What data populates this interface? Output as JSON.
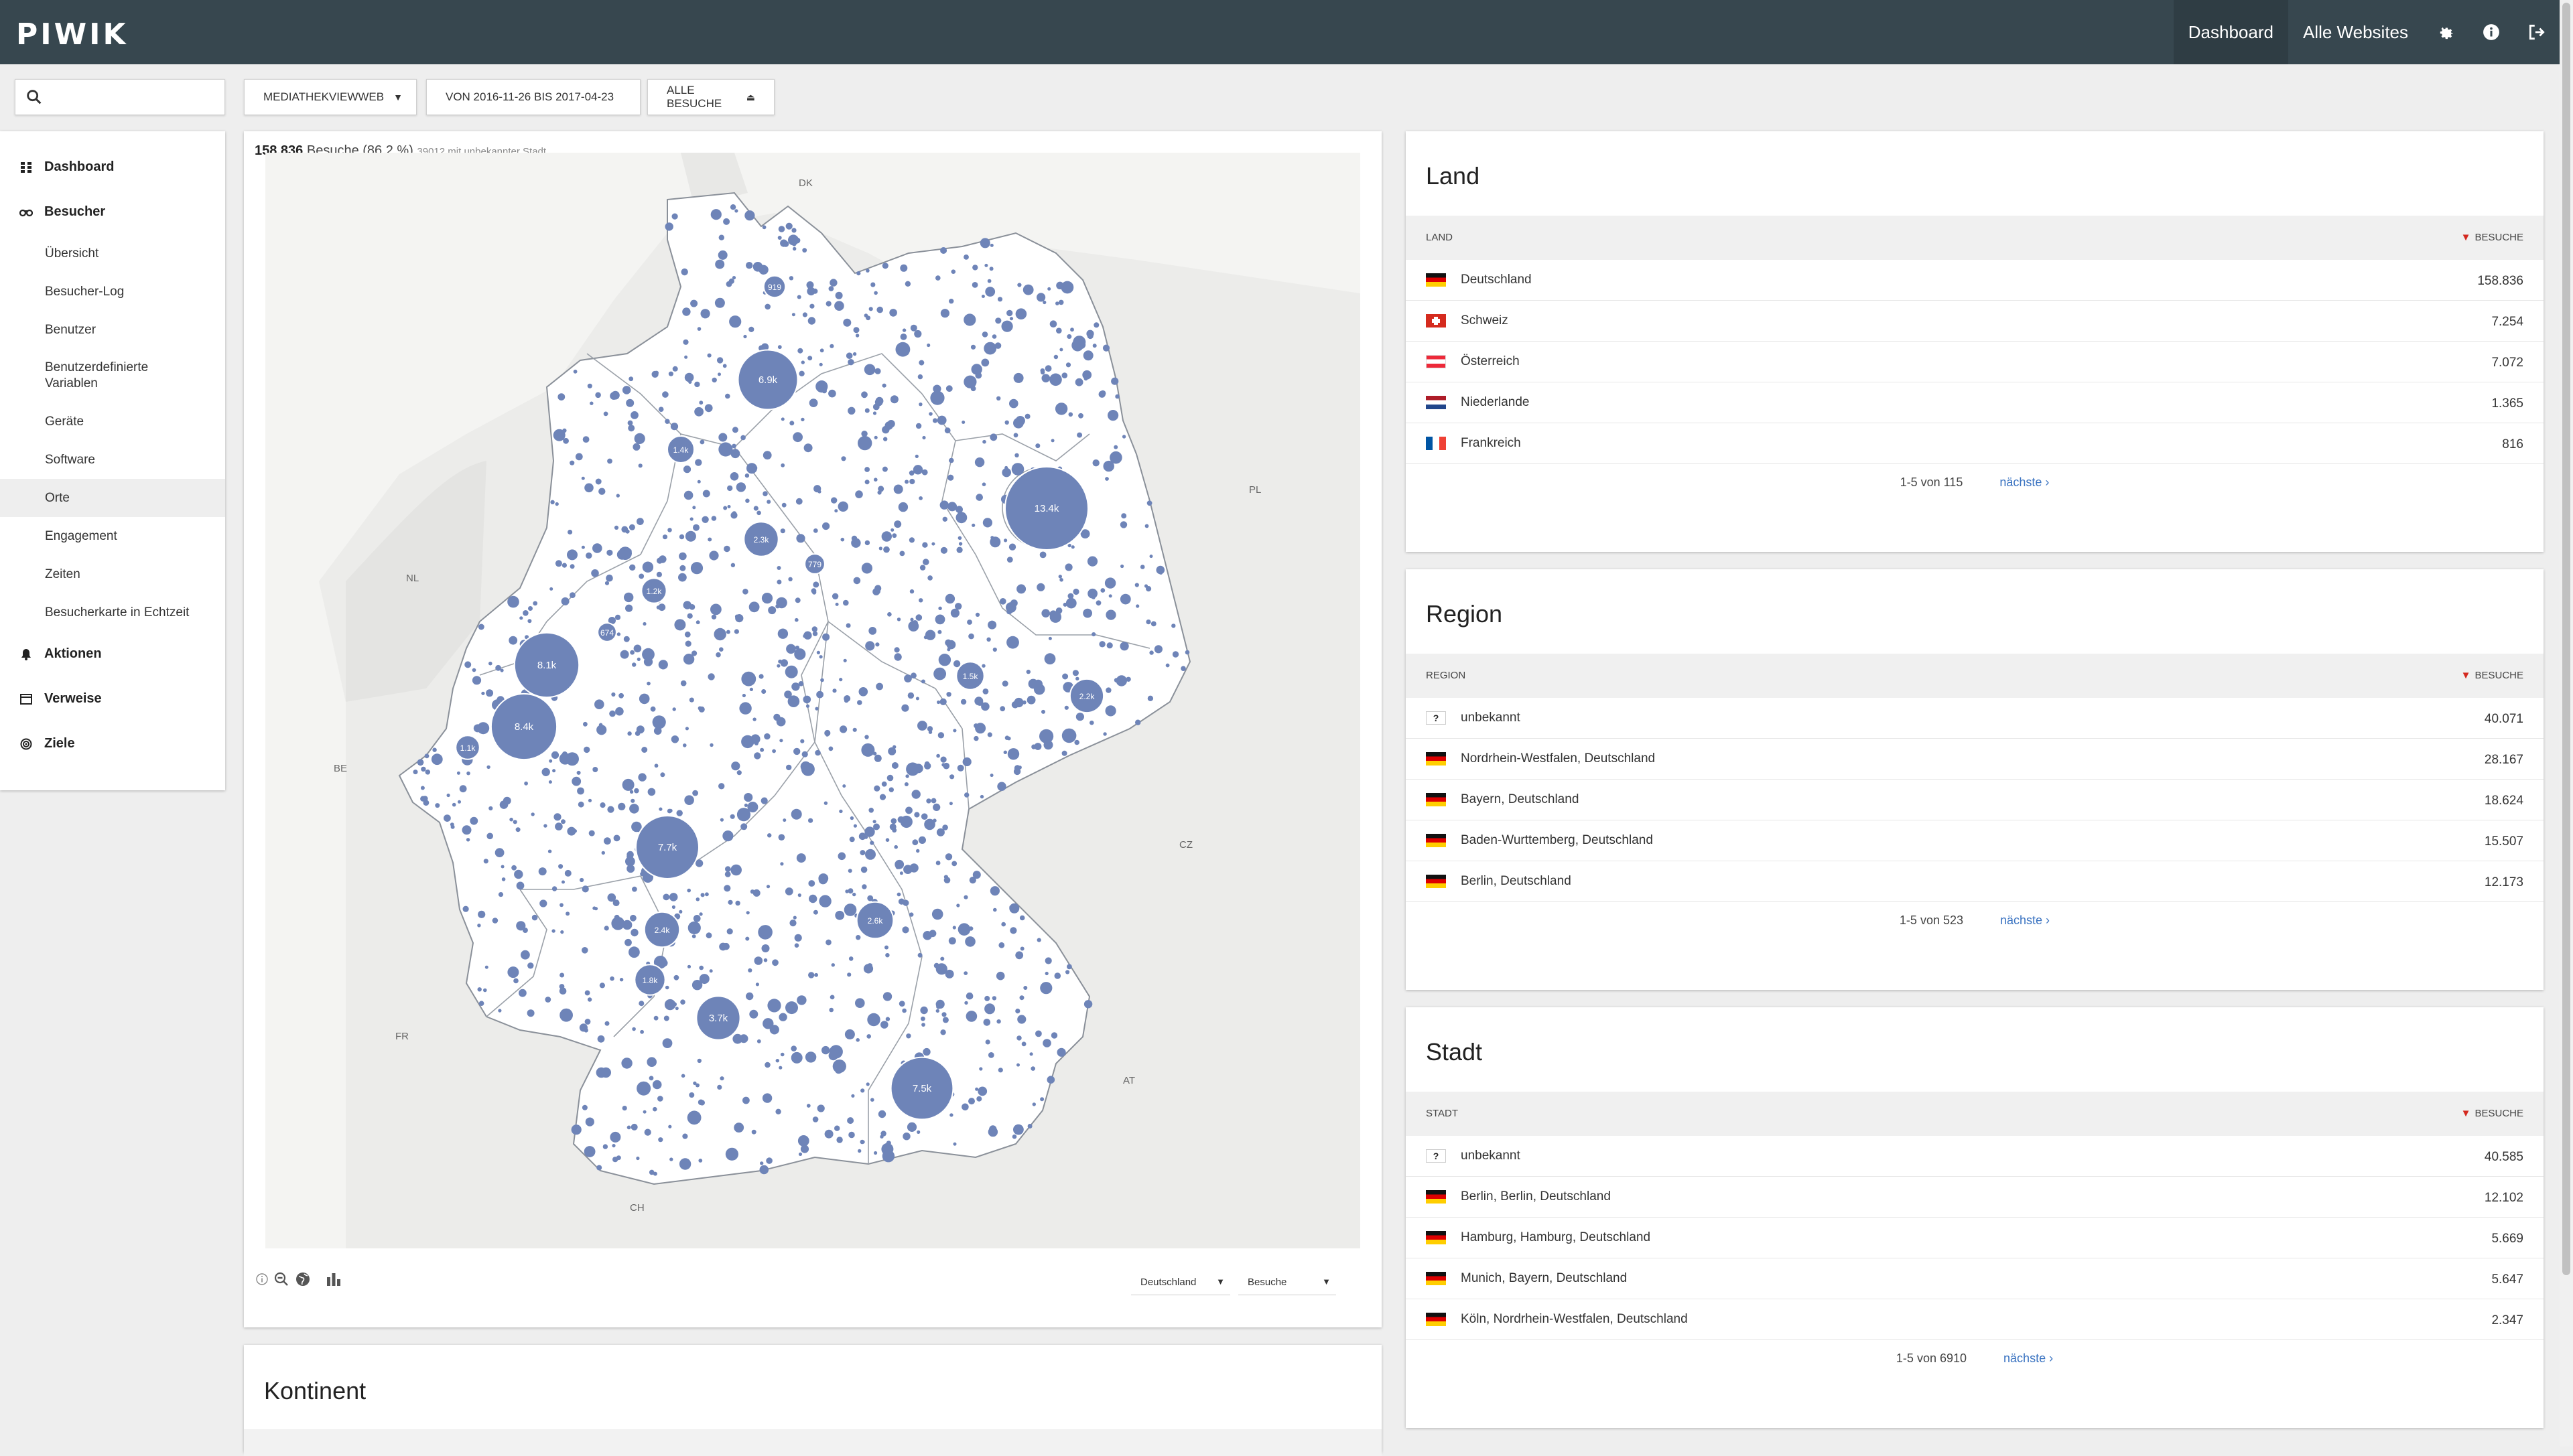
{
  "app": {
    "logo": "PIWIK",
    "nav": [
      {
        "label": "Dashboard",
        "active": true
      },
      {
        "label": "Alle Websites",
        "active": false
      }
    ],
    "nav_icons": [
      "gear-icon",
      "info-icon",
      "sign-out-icon"
    ]
  },
  "controls": {
    "search_placeholder": "",
    "site_selector": "MEDIATHEKVIEWWEB",
    "date_range": "VON 2016-11-26 BIS 2017-04-23",
    "segment": "ALLE BESUCHE"
  },
  "sidebar": {
    "categories": [
      {
        "label": "Dashboard",
        "icon": "dashboard-icon"
      },
      {
        "label": "Besucher",
        "icon": "visitors-icon"
      },
      {
        "label": "Aktionen",
        "icon": "bell-icon"
      },
      {
        "label": "Verweise",
        "icon": "referrers-icon"
      },
      {
        "label": "Ziele",
        "icon": "target-icon"
      }
    ],
    "besucher_items": [
      {
        "label": "Übersicht"
      },
      {
        "label": "Besucher-Log"
      },
      {
        "label": "Benutzer"
      },
      {
        "label": "Benutzerdefinierte Variablen"
      },
      {
        "label": "Geräte"
      },
      {
        "label": "Software"
      },
      {
        "label": "Orte",
        "active": true
      },
      {
        "label": "Engagement"
      },
      {
        "label": "Zeiten"
      },
      {
        "label": "Besucherkarte in Echtzeit"
      }
    ]
  },
  "map": {
    "caption_visits": "158.836",
    "caption_label": "Besuche (86,2 %)",
    "caption_unknown": "39012 mit unbekannter Stadt",
    "country_labels": [
      {
        "code": "DK"
      },
      {
        "code": "PL"
      },
      {
        "code": "NL"
      },
      {
        "code": "BE"
      },
      {
        "code": "CZ"
      },
      {
        "code": "FR"
      },
      {
        "code": "AT"
      },
      {
        "code": "CH"
      }
    ],
    "bubbles": [
      {
        "label": "13.4k",
        "visits": 13400
      },
      {
        "label": "8.4k",
        "visits": 8400
      },
      {
        "label": "8.1k",
        "visits": 8100
      },
      {
        "label": "7.7k",
        "visits": 7700
      },
      {
        "label": "7.5k",
        "visits": 7500
      },
      {
        "label": "6.9k",
        "visits": 6900
      },
      {
        "label": "3.7k",
        "visits": 3700
      },
      {
        "label": "2.6k",
        "visits": 2600
      },
      {
        "label": "2.4k",
        "visits": 2400
      },
      {
        "label": "2.3k",
        "visits": 2300
      },
      {
        "label": "2.2k",
        "visits": 2200
      },
      {
        "label": "1.8k",
        "visits": 1800
      },
      {
        "label": "1.5k",
        "visits": 1500
      },
      {
        "label": "1.4k",
        "visits": 1400
      },
      {
        "label": "1.2k",
        "visits": 1200
      },
      {
        "label": "1.1k",
        "visits": 1100
      },
      {
        "label": "919",
        "visits": 919
      },
      {
        "label": "779",
        "visits": 779
      },
      {
        "label": "674",
        "visits": 674
      }
    ],
    "region_select": "Deutschland",
    "metric_select": "Besuche",
    "tool_icons": [
      "info-icon",
      "zoom-out-icon",
      "globe-icon",
      "chart-icon"
    ]
  },
  "land": {
    "title": "Land",
    "col_label": "LAND",
    "col_metric": "BESUCHE",
    "rows": [
      {
        "label": "Deutschland",
        "value": "158.836",
        "flag": "de"
      },
      {
        "label": "Schweiz",
        "value": "7.254",
        "flag": "ch"
      },
      {
        "label": "Österreich",
        "value": "7.072",
        "flag": "at"
      },
      {
        "label": "Niederlande",
        "value": "1.365",
        "flag": "nl"
      },
      {
        "label": "Frankreich",
        "value": "816",
        "flag": "fr"
      }
    ],
    "pager": "1-5 von 115",
    "next": "nächste ›"
  },
  "region": {
    "title": "Region",
    "col_label": "REGION",
    "col_metric": "BESUCHE",
    "rows": [
      {
        "label": "unbekannt",
        "value": "40.071",
        "flag": "unknown"
      },
      {
        "label": "Nordrhein-Westfalen, Deutschland",
        "value": "28.167",
        "flag": "de"
      },
      {
        "label": "Bayern, Deutschland",
        "value": "18.624",
        "flag": "de"
      },
      {
        "label": "Baden-Wurttemberg, Deutschland",
        "value": "15.507",
        "flag": "de"
      },
      {
        "label": "Berlin, Deutschland",
        "value": "12.173",
        "flag": "de"
      }
    ],
    "pager": "1-5 von 523",
    "next": "nächste ›"
  },
  "stadt": {
    "title": "Stadt",
    "col_label": "STADT",
    "col_metric": "BESUCHE",
    "rows": [
      {
        "label": "unbekannt",
        "value": "40.585",
        "flag": "unknown"
      },
      {
        "label": "Berlin, Berlin, Deutschland",
        "value": "12.102",
        "flag": "de"
      },
      {
        "label": "Hamburg, Hamburg, Deutschland",
        "value": "5.669",
        "flag": "de"
      },
      {
        "label": "Munich, Bayern, Deutschland",
        "value": "5.647",
        "flag": "de"
      },
      {
        "label": "Köln, Nordrhein-Westfalen, Deutschland",
        "value": "2.347",
        "flag": "de"
      }
    ],
    "pager": "1-5 von 6910",
    "next": "nächste ›"
  },
  "kontinent": {
    "title": "Kontinent"
  },
  "colors": {
    "topbar": "#37474f",
    "bubble": "#6e84b8",
    "link": "#3a73c1",
    "sort_arrow": "#d4291f"
  }
}
